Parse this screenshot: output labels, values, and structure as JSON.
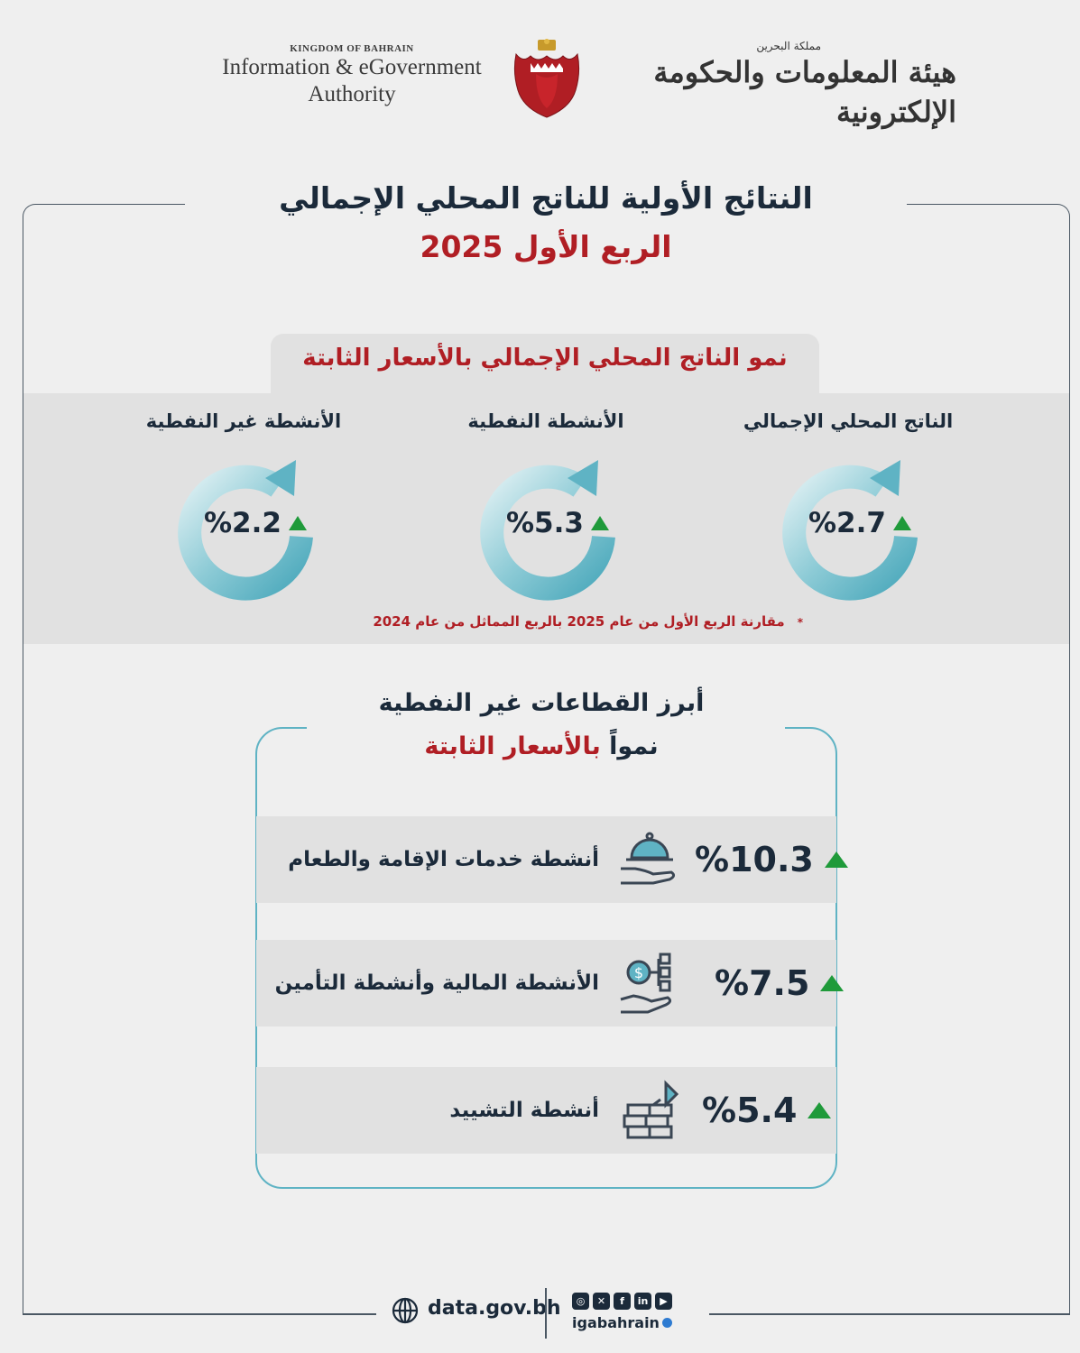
{
  "header": {
    "en_kingdom": "KINGDOM OF BAHRAIN",
    "en_line1": "Information & eGovernment",
    "en_line2": "Authority",
    "ar_kingdom": "مملكة البحرين",
    "ar_authority": "هيئة المعلومات والحكومة الإلكترونية"
  },
  "title": "النتائج الأولية للناتج المحلي الإجمالي",
  "subtitle": "الربع الأول 2025",
  "growth": {
    "heading": "نمو الناتج المحلي الإجمالي بالأسعار الثابتة",
    "items": [
      {
        "label": "الناتج المحلي الإجمالي",
        "value": "%2.7",
        "trend": "up"
      },
      {
        "label": "الأنشطة النفطية",
        "value": "%5.3",
        "trend": "up"
      },
      {
        "label": "الأنشطة غير النفطية",
        "value": "%2.2",
        "trend": "up"
      }
    ],
    "note": "مقارنة الربع الأول من عام 2025 بالربع المماثل من عام 2024",
    "note_mark": "*"
  },
  "sectors": {
    "title_line1": "أبرز القطاعات غير النفطية",
    "title_line2_prefix": "نمواً",
    "title_line2_highlight": "بالأسعار الثابتة",
    "items": [
      {
        "label": "أنشطة خدمات الإقامة والطعام",
        "value": "%10.3",
        "icon": "cloche-icon",
        "trend": "up"
      },
      {
        "label": "الأنشطة المالية وأنشطة التأمين",
        "value": "%7.5",
        "icon": "finance-hand-icon",
        "trend": "up"
      },
      {
        "label": "أنشطة التشييد",
        "value": "%5.4",
        "icon": "construction-icon",
        "trend": "up"
      }
    ]
  },
  "footer": {
    "website": "data.gov.bh",
    "handle": "igabahrain",
    "social": [
      "instagram-icon",
      "x-icon",
      "facebook-icon",
      "linkedin-icon",
      "youtube-icon"
    ]
  },
  "colors": {
    "accent_red": "#b01e24",
    "navy": "#1b2a3a",
    "teal": "#5fb3c4",
    "up_green": "#1f9a3a",
    "band": "#e1e1e1"
  }
}
